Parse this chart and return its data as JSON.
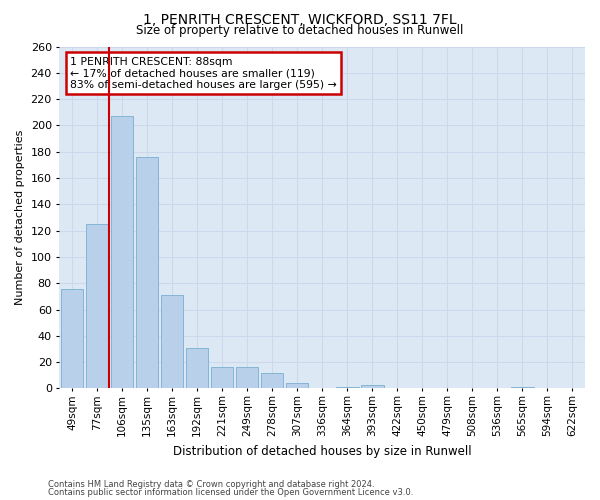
{
  "title1": "1, PENRITH CRESCENT, WICKFORD, SS11 7FL",
  "title2": "Size of property relative to detached houses in Runwell",
  "xlabel": "Distribution of detached houses by size in Runwell",
  "ylabel": "Number of detached properties",
  "categories": [
    "49sqm",
    "77sqm",
    "106sqm",
    "135sqm",
    "163sqm",
    "192sqm",
    "221sqm",
    "249sqm",
    "278sqm",
    "307sqm",
    "336sqm",
    "364sqm",
    "393sqm",
    "422sqm",
    "450sqm",
    "479sqm",
    "508sqm",
    "536sqm",
    "565sqm",
    "594sqm",
    "622sqm"
  ],
  "values": [
    76,
    125,
    207,
    176,
    71,
    31,
    16,
    16,
    12,
    4,
    0,
    1,
    3,
    0,
    0,
    0,
    0,
    0,
    1,
    0,
    0
  ],
  "bar_color": "#b8d0ea",
  "bar_edge_color": "#7aaed0",
  "annotation_text": "1 PENRITH CRESCENT: 88sqm\n← 17% of detached houses are smaller (119)\n83% of semi-detached houses are larger (595) →",
  "annotation_box_color": "#ffffff",
  "annotation_box_edge": "#cc0000",
  "red_line_color": "#cc0000",
  "grid_color": "#cdd8ec",
  "background_color": "#dde8f5",
  "ylim": [
    0,
    260
  ],
  "yticks": [
    0,
    20,
    40,
    60,
    80,
    100,
    120,
    140,
    160,
    180,
    200,
    220,
    240,
    260
  ],
  "footer1": "Contains HM Land Registry data © Crown copyright and database right 2024.",
  "footer2": "Contains public sector information licensed under the Open Government Licence v3.0."
}
